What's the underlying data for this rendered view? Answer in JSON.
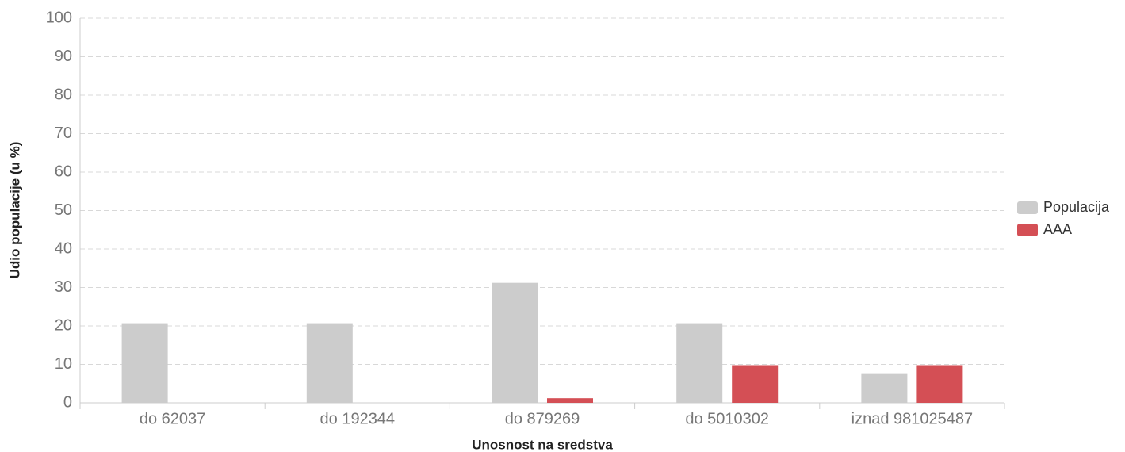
{
  "chart_data": {
    "type": "bar",
    "xlabel": "Unosnost na sredstva",
    "ylabel": "Udio populacije (u %)",
    "categories": [
      "do 62037",
      "do 192344",
      "do 879269",
      "do 5010302",
      "iznad 981025487"
    ],
    "series": [
      {
        "name": "Populacija",
        "color": "#cccccc",
        "values": [
          20.7,
          20.7,
          31.2,
          20.7,
          7.5
        ]
      },
      {
        "name": "AAA",
        "color": "#d44f55",
        "values": [
          0,
          0,
          1.2,
          9.8,
          9.8
        ]
      }
    ],
    "ylim": [
      0,
      100
    ],
    "yticks": [
      0,
      10,
      20,
      30,
      40,
      50,
      60,
      70,
      80,
      90,
      100
    ],
    "grid": true,
    "legend": "right"
  }
}
